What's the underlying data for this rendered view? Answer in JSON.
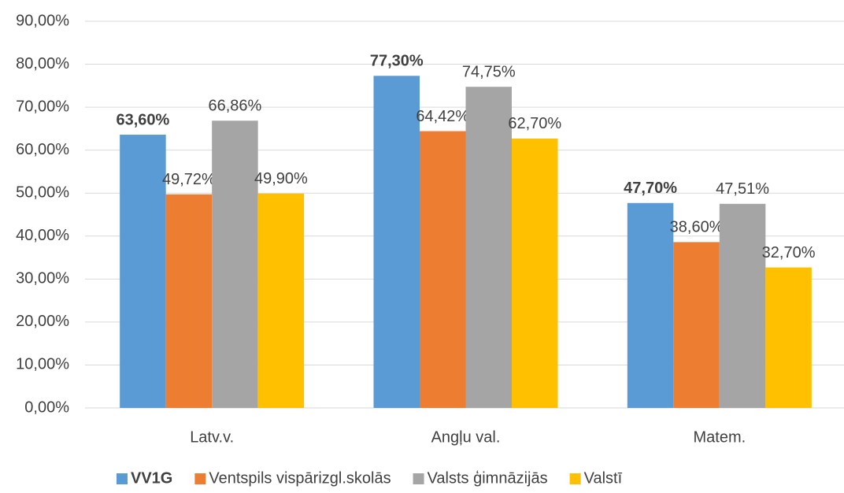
{
  "chart_data": {
    "type": "bar",
    "categories": [
      "Latv.v.",
      "Angļu val.",
      "Matem."
    ],
    "series": [
      {
        "name": "VV1G",
        "color": "#5b9bd5",
        "label_weight": "bold",
        "values": [
          63.6,
          77.3,
          47.7
        ],
        "value_labels": [
          "63,60%",
          "77,30%",
          "47,70%"
        ]
      },
      {
        "name": "Ventspils vispārizgl.skolās",
        "color": "#ed7d31",
        "label_weight": "normal",
        "values": [
          49.72,
          64.42,
          38.6
        ],
        "value_labels": [
          "49,72%",
          "64,42%",
          "38,60%"
        ]
      },
      {
        "name": "Valsts ģimnāzijās",
        "color": "#a5a5a5",
        "label_weight": "normal",
        "values": [
          66.86,
          74.75,
          47.51
        ],
        "value_labels": [
          "66,86%",
          "74,75%",
          "47,51%"
        ]
      },
      {
        "name": "Valstī",
        "color": "#ffc000",
        "label_weight": "normal",
        "values": [
          49.9,
          62.7,
          32.7
        ],
        "value_labels": [
          "49,90%",
          "62,70%",
          "32,70%"
        ]
      }
    ],
    "ylim": [
      0,
      90
    ],
    "yticks": [
      {
        "value": 0,
        "label": "0,00%"
      },
      {
        "value": 10,
        "label": "10,00%"
      },
      {
        "value": 20,
        "label": "20,00%"
      },
      {
        "value": 30,
        "label": "30,00%"
      },
      {
        "value": 40,
        "label": "40,00%"
      },
      {
        "value": 50,
        "label": "50,00%"
      },
      {
        "value": 60,
        "label": "60,00%"
      },
      {
        "value": 70,
        "label": "70,00%"
      },
      {
        "value": 80,
        "label": "80,00%"
      },
      {
        "value": 90,
        "label": "90,00%"
      }
    ],
    "grid": true,
    "legend": "bottom"
  }
}
